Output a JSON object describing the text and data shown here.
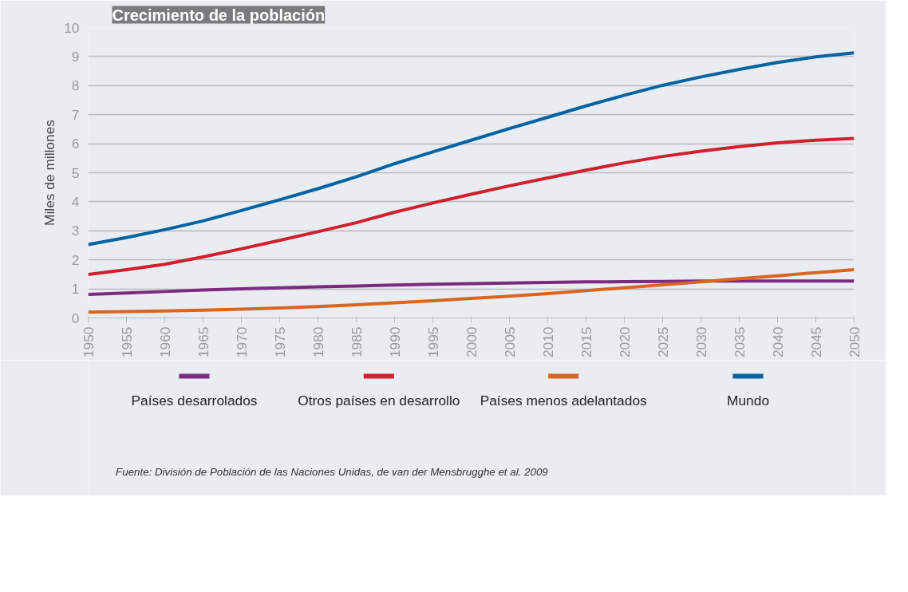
{
  "chart_data": {
    "type": "line",
    "title": "Crecimiento de la población",
    "ylabel": "Miles de millones",
    "x": [
      1950,
      1955,
      1960,
      1965,
      1970,
      1975,
      1980,
      1985,
      1990,
      1995,
      2000,
      2005,
      2010,
      2015,
      2020,
      2025,
      2030,
      2035,
      2040,
      2045,
      2050
    ],
    "xlim": [
      1950,
      2050
    ],
    "xticks": [
      1950,
      1955,
      1960,
      1965,
      1970,
      1975,
      1980,
      1985,
      1990,
      1995,
      2000,
      2005,
      2010,
      2015,
      2020,
      2025,
      2030,
      2035,
      2040,
      2045,
      2050
    ],
    "ylim": [
      0,
      10
    ],
    "yticks": [
      0,
      1,
      2,
      3,
      4,
      5,
      6,
      7,
      8,
      9,
      10
    ],
    "series": [
      {
        "name": "Países desarrolados",
        "color": "#7b2a7f",
        "values": [
          0.81,
          0.86,
          0.91,
          0.96,
          1.0,
          1.04,
          1.07,
          1.1,
          1.13,
          1.16,
          1.18,
          1.2,
          1.22,
          1.24,
          1.25,
          1.26,
          1.27,
          1.27,
          1.27,
          1.27,
          1.27
        ]
      },
      {
        "name": "Otros países en desarrollo",
        "color": "#d0202e",
        "values": [
          1.5,
          1.66,
          1.85,
          2.1,
          2.38,
          2.67,
          2.97,
          3.28,
          3.64,
          3.96,
          4.26,
          4.55,
          4.82,
          5.09,
          5.34,
          5.56,
          5.74,
          5.9,
          6.03,
          6.12,
          6.18
        ]
      },
      {
        "name": "Países menos adelantados",
        "color": "#d9651f",
        "values": [
          0.2,
          0.22,
          0.24,
          0.27,
          0.3,
          0.34,
          0.39,
          0.45,
          0.52,
          0.59,
          0.67,
          0.75,
          0.84,
          0.94,
          1.04,
          1.14,
          1.24,
          1.35,
          1.45,
          1.56,
          1.66
        ]
      },
      {
        "name": "Mundo",
        "color": "#0563a3",
        "values": [
          2.53,
          2.77,
          3.04,
          3.34,
          3.7,
          4.07,
          4.45,
          4.86,
          5.31,
          5.72,
          6.12,
          6.52,
          6.91,
          7.3,
          7.67,
          8.01,
          8.3,
          8.56,
          8.8,
          8.99,
          9.13
        ]
      }
    ],
    "grid": "y",
    "legend": "bottom",
    "marker": "none",
    "line_style": "solid",
    "annotations": [
      "Fuente: División de Población de las Naciones Unidas, de van der Mensbrugghe et al. 2009"
    ]
  }
}
